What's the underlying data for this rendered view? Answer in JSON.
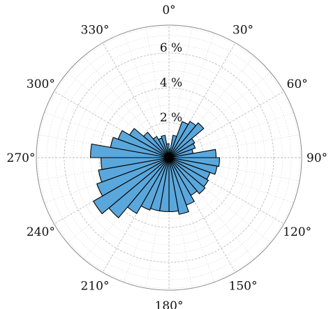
{
  "chart_data": {
    "type": "polar-bar",
    "title": "",
    "series_color": "#5aa7dc",
    "edge_color": "#000000",
    "theta_zero": "top",
    "theta_direction": "clockwise",
    "theta_tick_labels": [
      "0°",
      "30°",
      "60°",
      "90°",
      "120°",
      "150°",
      "180°",
      "210°",
      "240°",
      "270°",
      "300°",
      "330°"
    ],
    "theta_ticks_deg": [
      0,
      30,
      60,
      90,
      120,
      150,
      180,
      210,
      240,
      270,
      300,
      330
    ],
    "radial_tick_labels": [
      "2 %",
      "4 %",
      "6 %"
    ],
    "radial_ticks": [
      2,
      4,
      6
    ],
    "rlim": [
      0,
      7.6
    ],
    "bin_width_deg": 10,
    "grid": true,
    "bins_start_deg": [
      0,
      10,
      20,
      30,
      40,
      50,
      60,
      70,
      80,
      90,
      100,
      110,
      120,
      130,
      140,
      150,
      160,
      170,
      180,
      190,
      200,
      210,
      220,
      230,
      240,
      250,
      260,
      270,
      280,
      290,
      300,
      310,
      320,
      330,
      340,
      350
    ],
    "values": [
      0.5,
      1.3,
      2.2,
      2.4,
      2.6,
      1.7,
      1.6,
      1.4,
      2.7,
      2.9,
      2.8,
      2.5,
      2.6,
      2.7,
      2.5,
      2.9,
      3.3,
      3.1,
      3.1,
      3.1,
      3.2,
      3.7,
      4.5,
      5.0,
      4.4,
      4.1,
      3.9,
      4.5,
      3.4,
      3.1,
      2.6,
      1.9,
      1.4,
      1.2,
      1.3,
      0.8
    ]
  }
}
